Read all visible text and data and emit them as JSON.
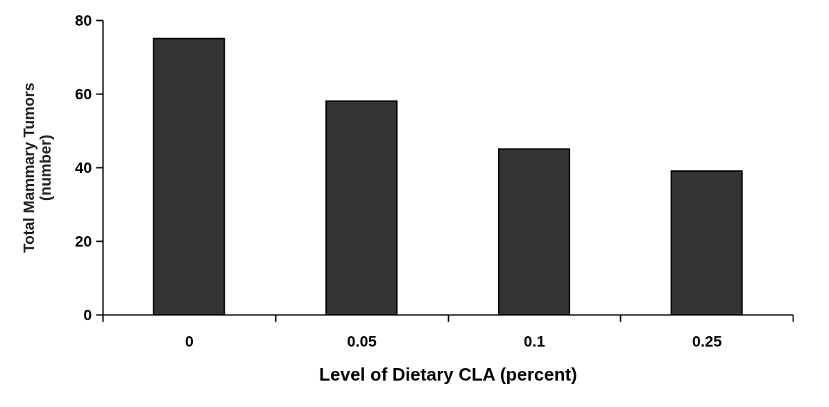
{
  "chart_data": {
    "type": "bar",
    "xlabel": "Level of Dietary CLA (percent)",
    "ylabel": "Total Mammary Tumors\n(number)",
    "categories": [
      "0",
      "0.05",
      "0.1",
      "0.25"
    ],
    "values": [
      75,
      58,
      45,
      39
    ],
    "color": "#333333",
    "ylim": [
      0,
      80
    ],
    "yticks": [
      0,
      20,
      40,
      60,
      80
    ],
    "grid": false
  }
}
